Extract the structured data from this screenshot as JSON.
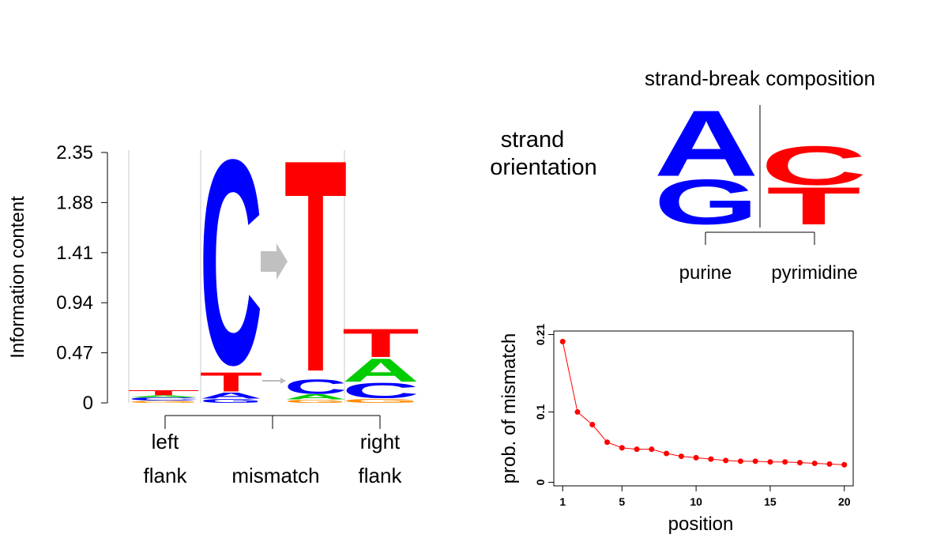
{
  "logo": {
    "ylabel": "Information content",
    "yticks": [
      "2.35",
      "1.88",
      "1.41",
      "0.94",
      "0.47",
      "0"
    ],
    "ylim": [
      0,
      2.35
    ],
    "positions": [
      {
        "group": "left flank",
        "stack": [
          {
            "letter": "G",
            "color": "#ff8c00",
            "height": 0.02
          },
          {
            "letter": "C",
            "color": "#0000ff",
            "height": 0.03
          },
          {
            "letter": "A",
            "color": "#00cc00",
            "height": 0.02
          },
          {
            "letter": "T",
            "color": "#ff0000",
            "height": 0.05
          }
        ]
      },
      {
        "group": "mismatch",
        "stack": [
          {
            "letter": "G",
            "color": "#0000ff",
            "height": 0.04
          },
          {
            "letter": "A",
            "color": "#0000ff",
            "height": 0.06
          },
          {
            "letter": "T",
            "color": "#ff0000",
            "height": 0.19
          },
          {
            "letter": "C",
            "color": "#0000ff",
            "height": 2.03
          }
        ]
      },
      {
        "group": "mismatch",
        "stack": [
          {
            "letter": "G",
            "color": "#ff8c00",
            "height": 0.03
          },
          {
            "letter": "A",
            "color": "#00cc00",
            "height": 0.05
          },
          {
            "letter": "C",
            "color": "#0000ff",
            "height": 0.14
          },
          {
            "letter": "T",
            "color": "#ff0000",
            "height": 2.1
          }
        ]
      },
      {
        "group": "right flank",
        "stack": [
          {
            "letter": "G",
            "color": "#ff8c00",
            "height": 0.04
          },
          {
            "letter": "C",
            "color": "#0000ff",
            "height": 0.15
          },
          {
            "letter": "A",
            "color": "#00cc00",
            "height": 0.23
          },
          {
            "letter": "T",
            "color": "#ff0000",
            "height": 0.28
          }
        ]
      }
    ],
    "groups": {
      "left_l1": "left",
      "left_l2": "flank",
      "mismatch": "mismatch",
      "right_l1": "right",
      "right_l2": "flank"
    }
  },
  "strand": {
    "title": "strand-break composition",
    "label_l1": "strand",
    "label_l2": "orientation",
    "purine_label": "purine",
    "pyrimidine_label": "pyrimidine",
    "purine_letters": [
      {
        "letter": "A",
        "color": "#0000ff"
      },
      {
        "letter": "G",
        "color": "#0000ff"
      }
    ],
    "pyrimidine_letters": [
      {
        "letter": "C",
        "color": "#ff0000"
      },
      {
        "letter": "T",
        "color": "#ff0000"
      }
    ]
  },
  "chart_data": {
    "type": "line",
    "xlabel": "position",
    "ylabel": "prob. of mismatch",
    "xticks": [
      1,
      5,
      10,
      15,
      20
    ],
    "yticks": [
      0,
      0.1,
      0.21
    ],
    "ytick_labels": [
      "0",
      "0.1",
      "0.21"
    ],
    "xlim": [
      0.4,
      20.6
    ],
    "ylim": [
      -0.005,
      0.215
    ],
    "color": "#ff0000",
    "x": [
      1,
      2,
      3,
      4,
      5,
      6,
      7,
      8,
      9,
      10,
      11,
      12,
      13,
      14,
      15,
      16,
      17,
      18,
      19,
      20
    ],
    "values": [
      0.2,
      0.1,
      0.082,
      0.057,
      0.049,
      0.047,
      0.047,
      0.041,
      0.037,
      0.035,
      0.033,
      0.031,
      0.03,
      0.03,
      0.029,
      0.029,
      0.028,
      0.027,
      0.026,
      0.025
    ]
  }
}
